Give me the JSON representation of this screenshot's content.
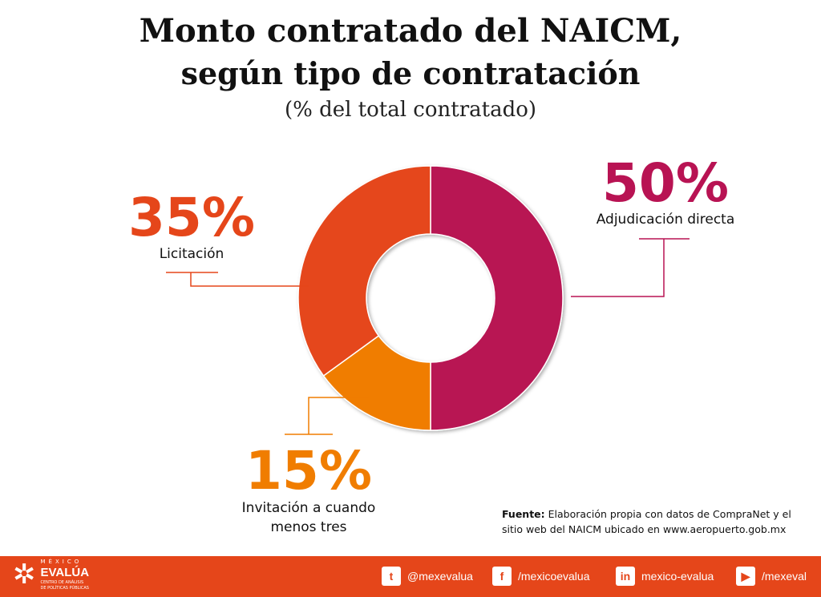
{
  "chart_data": {
    "type": "pie",
    "title": "Monto contratado del NAICM,",
    "title_line2": "según tipo de contratación",
    "subtitle": "(% del total contratado)",
    "donut": true,
    "slices": [
      {
        "name": "Adjudicación directa",
        "value": 50,
        "label": "50%",
        "color": "#b81353"
      },
      {
        "name": "Invitación a cuando menos tres",
        "value": 15,
        "label": "15%",
        "color": "#f07d00"
      },
      {
        "name": "Licitación",
        "value": 35,
        "label": "35%",
        "color": "#e5461a"
      }
    ]
  },
  "labels": {
    "invitacion_line1": "Invitación a cuando",
    "invitacion_line2": "menos tres"
  },
  "source": {
    "bold": "Fuente:",
    "text": " Elaboración propia con datos de CompraNet y el sitio web del NAICM ubicado en  www.aeropuerto.gob.mx"
  },
  "footer": {
    "logo": {
      "top": "MÉXICO",
      "main": "EVALÚA",
      "sub1": "CENTRO DE ANÁLISIS",
      "sub2": "DE POLÍTICAS PÚBLICAS"
    },
    "social": [
      {
        "icon": "twitter-icon",
        "glyph": "t",
        "handle": "@mexevalua"
      },
      {
        "icon": "facebook-icon",
        "glyph": "f",
        "handle": "/mexicoevalua"
      },
      {
        "icon": "linkedin-icon",
        "glyph": "in",
        "handle": "mexico-evalua"
      },
      {
        "icon": "youtube-icon",
        "glyph": "▶",
        "handle": "/mexeval"
      }
    ],
    "color": "#e5461a"
  }
}
